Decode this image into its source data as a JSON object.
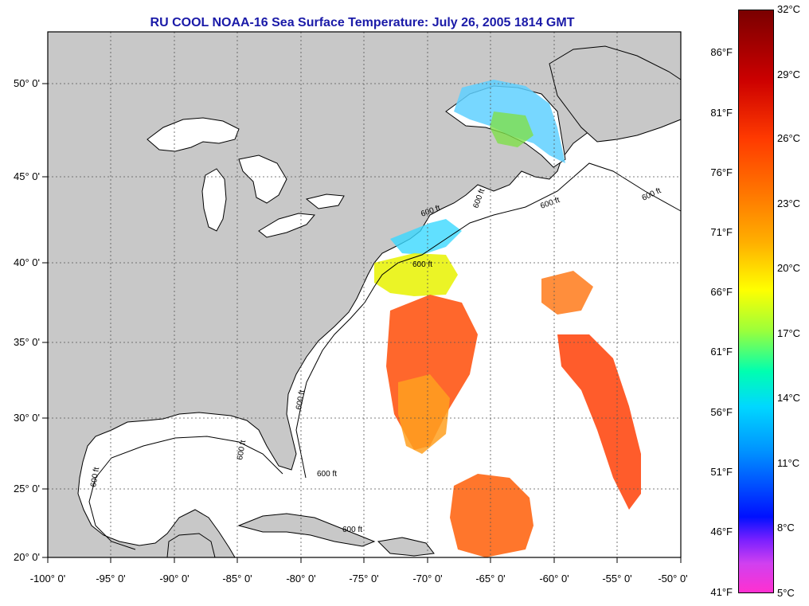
{
  "title": "RU COOL  NOAA-16  Sea Surface Temperature:  July 26, 2005 1814 GMT",
  "map": {
    "lon_range": [
      -100,
      -50
    ],
    "lat_range": [
      20,
      52.5
    ],
    "lat_ticks": [
      "50° 0'",
      "45° 0'",
      "40° 0'",
      "35° 0'",
      "30° 0'",
      "25° 0'",
      "20° 0'"
    ],
    "lon_ticks": [
      "-100° 0'",
      "-95° 0'",
      "-90° 0'",
      "-85° 0'",
      "-80° 0'",
      "-75° 0'",
      "-70° 0'",
      "-65° 0'",
      "-60° 0'",
      "-55° 0'",
      "-50° 0'"
    ],
    "contour_labels": [
      "600 ft",
      "600 ft",
      "600 ft",
      "600 ft",
      "600 ft",
      "600 ft",
      "600 ft",
      "600 ft",
      "600 ft",
      "600 ft"
    ],
    "grid": true,
    "land_color": "#c8c8c8",
    "ocean_color": "#ffffff"
  },
  "colorbar": {
    "fahrenheit": [
      "86°F",
      "81°F",
      "76°F",
      "71°F",
      "66°F",
      "61°F",
      "56°F",
      "51°F",
      "46°F",
      "41°F"
    ],
    "celsius": [
      "32°C",
      "29°C",
      "26°C",
      "23°C",
      "20°C",
      "17°C",
      "14°C",
      "11°C",
      "8°C",
      "5°C"
    ]
  }
}
